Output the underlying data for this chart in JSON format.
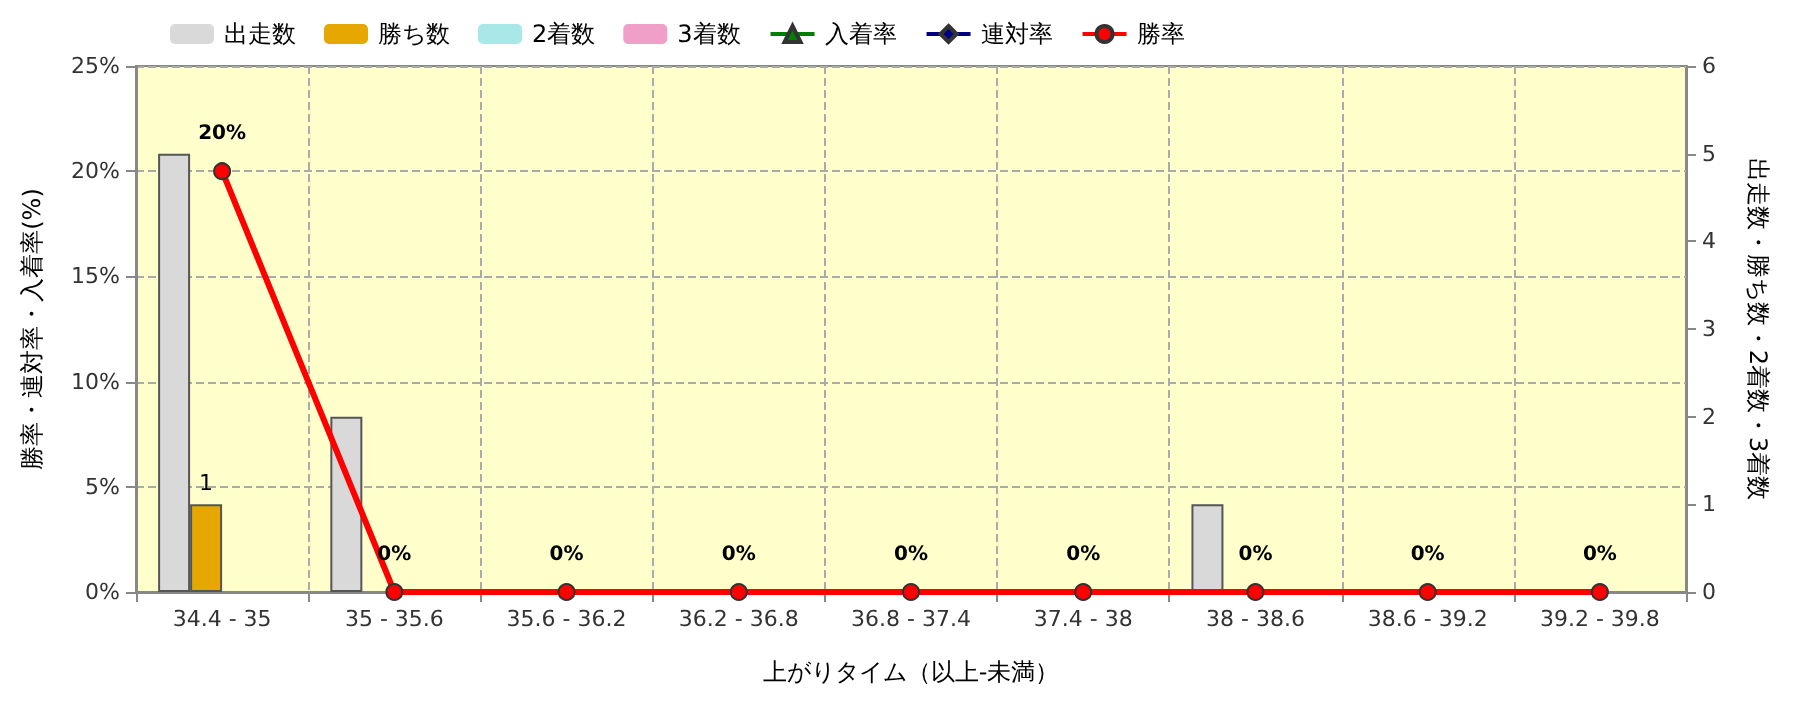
{
  "chart_data": {
    "type": "bar",
    "xlabel": "上がりタイム（以上-未満）",
    "ylabel": "勝率・連対率・入着率(%)",
    "y2label": "出走数・勝ち数・2着数・3着数",
    "categories": [
      "34.4 - 35",
      "35 - 35.6",
      "35.6 - 36.2",
      "36.2 - 36.8",
      "36.8 - 37.4",
      "37.4 - 38",
      "38 - 38.6",
      "38.6 - 39.2",
      "39.2 - 39.8"
    ],
    "series": [
      {
        "name": "出走数",
        "axis": "y2",
        "color": "#d9d9d9",
        "values": [
          5,
          2,
          0,
          0,
          0,
          0,
          1,
          0,
          0
        ]
      },
      {
        "name": "勝ち数",
        "axis": "y2",
        "color": "#e6a800",
        "values": [
          1,
          0,
          0,
          0,
          0,
          0,
          0,
          0,
          0
        ],
        "value_labels": [
          "1",
          null,
          null,
          null,
          null,
          null,
          null,
          null,
          null
        ]
      },
      {
        "name": "2着数",
        "axis": "y2",
        "color": "#a8e8e8",
        "values": [
          0,
          0,
          0,
          0,
          0,
          0,
          0,
          0,
          0
        ]
      },
      {
        "name": "3着数",
        "axis": "y2",
        "color": "#f0a0c8",
        "values": [
          0,
          0,
          0,
          0,
          0,
          0,
          0,
          0,
          0
        ]
      },
      {
        "name": "入着率",
        "type": "line",
        "color": "#008000",
        "marker": "triangle",
        "values": [
          null,
          null,
          null,
          null,
          null,
          null,
          null,
          null,
          null
        ]
      },
      {
        "name": "連対率",
        "type": "line",
        "color": "#000080",
        "marker": "diamond",
        "values": [
          null,
          null,
          null,
          null,
          null,
          null,
          null,
          null,
          null
        ]
      },
      {
        "name": "勝率",
        "type": "line",
        "color": "#ff0000",
        "marker": "circle",
        "values": [
          20,
          0,
          0,
          0,
          0,
          0,
          0,
          0,
          0
        ],
        "value_labels": [
          "20%",
          "0%",
          "0%",
          "0%",
          "0%",
          "0%",
          "0%",
          "0%",
          "0%"
        ]
      }
    ],
    "ylim": [
      0,
      25
    ],
    "yticks": [
      {
        "value": 0,
        "label": "0%"
      },
      {
        "value": 5,
        "label": "5%"
      },
      {
        "value": 10,
        "label": "10%"
      },
      {
        "value": 15,
        "label": "15%"
      },
      {
        "value": 20,
        "label": "20%"
      },
      {
        "value": 25,
        "label": "25%"
      }
    ],
    "y2lim": [
      0,
      6
    ],
    "y2ticks": [
      0,
      1,
      2,
      3,
      4,
      5,
      6
    ],
    "grid": true,
    "legend": "top left"
  }
}
